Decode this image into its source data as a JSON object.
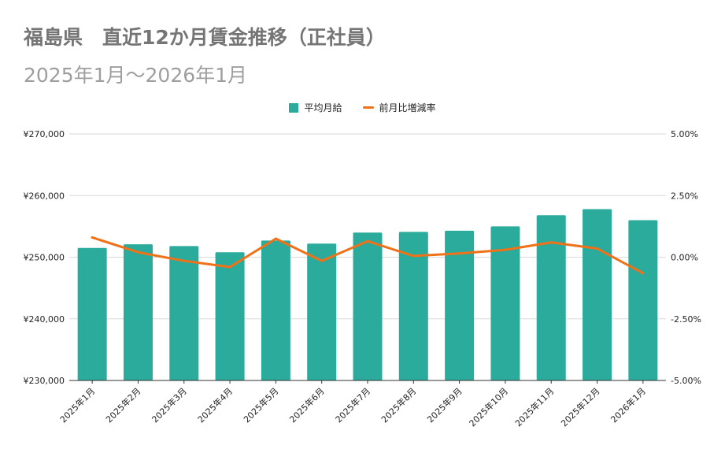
{
  "chart_data": {
    "type": "bar",
    "title": "福島県　直近12か月賃金推移（正社員）",
    "subtitle": "2025年1月～2026年1月",
    "categories": [
      "2025年1月",
      "2025年2月",
      "2025年3月",
      "2025年4月",
      "2025年5月",
      "2025年6月",
      "2025年7月",
      "2025年8月",
      "2025年9月",
      "2025年10月",
      "2025年11月",
      "2025年12月",
      "2026年1月"
    ],
    "series": [
      {
        "name": "平均月給",
        "type": "bar",
        "axis": "left",
        "values": [
          251500,
          252100,
          251800,
          250800,
          252700,
          252200,
          254000,
          254100,
          254300,
          255000,
          256800,
          257800,
          256000
        ]
      },
      {
        "name": "前月比増減率",
        "type": "line",
        "axis": "right",
        "values": [
          0.8,
          0.2,
          -0.15,
          -0.4,
          0.75,
          -0.15,
          0.65,
          0.05,
          0.15,
          0.3,
          0.6,
          0.35,
          -0.65
        ]
      }
    ],
    "y_left": {
      "min": 230000,
      "max": 270000,
      "ticks": [
        "¥270,000",
        "¥260,000",
        "¥250,000",
        "¥240,000",
        "¥230,000"
      ]
    },
    "y_right": {
      "min": -5,
      "max": 5,
      "ticks": [
        "5.00%",
        "2.50%",
        "0.00%",
        "-2.50%",
        "-5.00%"
      ]
    },
    "grid": true,
    "legend_position": "top-center",
    "colors": {
      "bar": "#2bab9b",
      "line": "#f07118",
      "grid": "#d9d9d9",
      "axis": "#333333"
    }
  }
}
